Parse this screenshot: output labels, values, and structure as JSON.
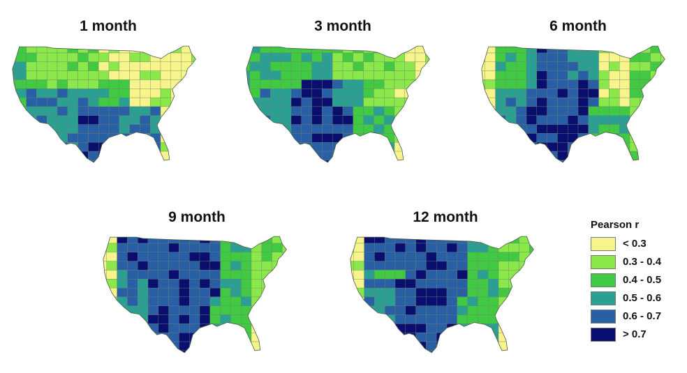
{
  "colors": {
    "lt03": "#f7f48b",
    "r03_04": "#8ae84a",
    "r04_05": "#41c944",
    "r05_06": "#2a9f92",
    "r06_07": "#2960a5",
    "gt07": "#0a0f6f",
    "border": "#6f7f6a"
  },
  "panels": [
    {
      "id": "m1",
      "title": "1 month"
    },
    {
      "id": "m3",
      "title": "3 month"
    },
    {
      "id": "m6",
      "title": "6 month"
    },
    {
      "id": "m9",
      "title": "9 month"
    },
    {
      "id": "m12",
      "title": "12 month"
    }
  ],
  "legend": {
    "title": "Pearson r",
    "items": [
      {
        "label": "< 0.3",
        "color_key": "lt03"
      },
      {
        "label": "0.3 - 0.4",
        "color_key": "r03_04"
      },
      {
        "label": "0.4 - 0.5",
        "color_key": "r04_05"
      },
      {
        "label": "0.5 - 0.6",
        "color_key": "r05_06"
      },
      {
        "label": "0.6 - 0.7",
        "color_key": "r06_07"
      },
      {
        "label": "> 0.7",
        "color_key": "gt07"
      }
    ]
  }
}
